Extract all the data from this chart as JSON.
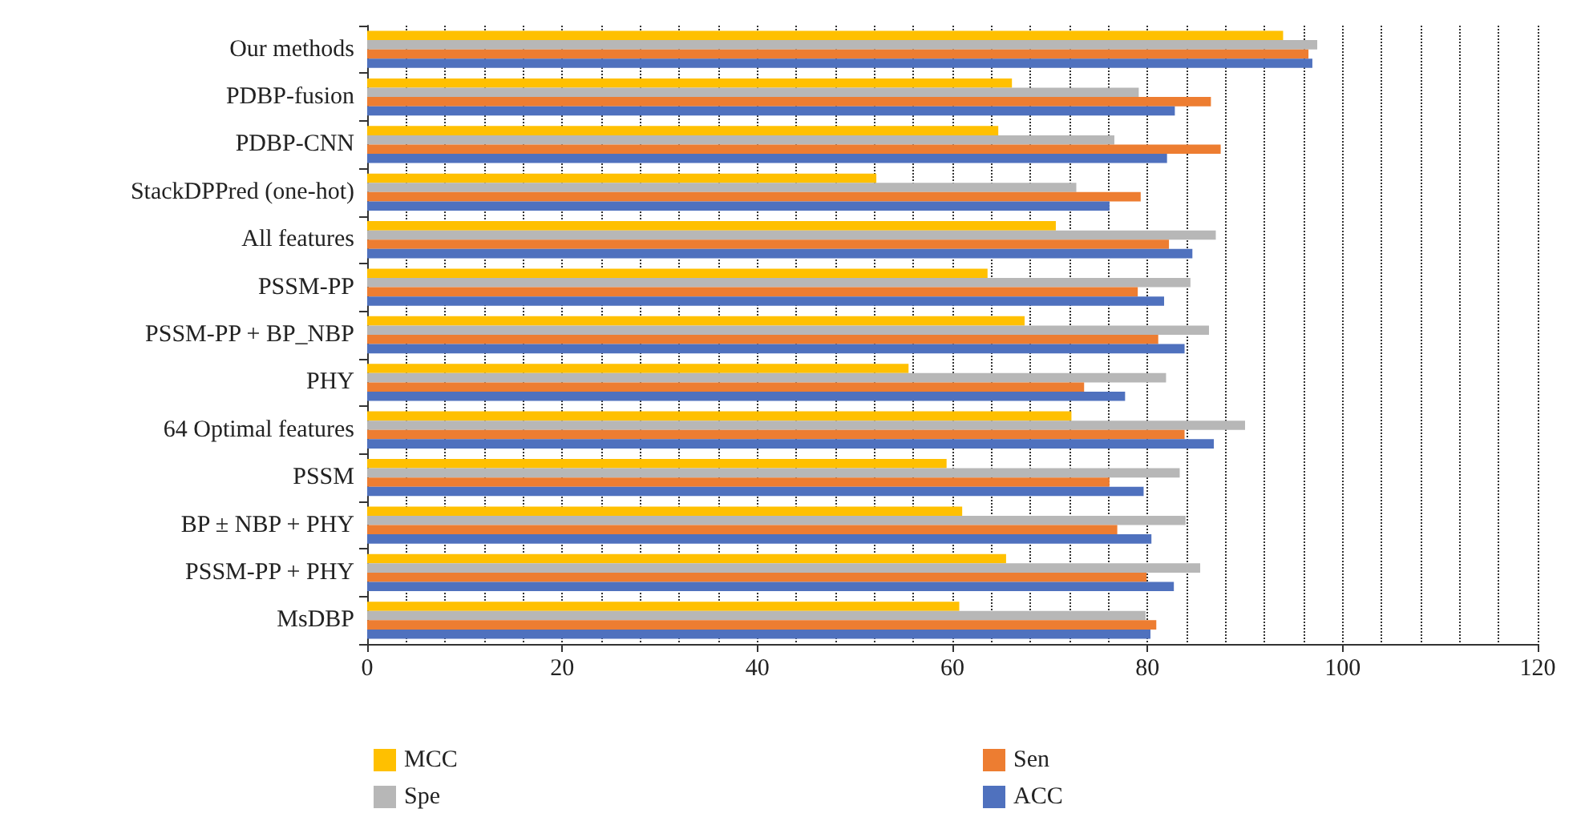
{
  "chart_data": {
    "type": "bar",
    "orientation": "horizontal",
    "categories": [
      "Our methods",
      "PDBP-fusion",
      "PDBP-CNN",
      "StackDPPred (one-hot)",
      "All features",
      "PSSM-PP",
      "PSSM-PP + BP_NBP",
      "PHY",
      "64 Optimal features",
      "PSSM",
      "BP ± NBP + PHY",
      "PSSM-PP + PHY",
      "MsDBP"
    ],
    "series": [
      {
        "name": "MCC",
        "color": "#ffc000",
        "values": [
          93.9,
          66.1,
          64.7,
          52.2,
          70.6,
          63.6,
          67.4,
          55.5,
          72.2,
          59.4,
          61.0,
          65.5,
          60.7
        ]
      },
      {
        "name": "Spe",
        "color": "#b7b7b7",
        "values": [
          97.4,
          79.1,
          76.6,
          72.7,
          87.0,
          84.4,
          86.3,
          81.9,
          90.0,
          83.3,
          83.9,
          85.4,
          79.8
        ]
      },
      {
        "name": "Sen",
        "color": "#ed7d31",
        "values": [
          96.5,
          86.5,
          87.5,
          79.3,
          82.2,
          79.0,
          81.1,
          73.5,
          83.8,
          76.1,
          76.9,
          79.9,
          80.9
        ]
      },
      {
        "name": "ACC",
        "color": "#4f71be",
        "values": [
          96.9,
          82.8,
          82.0,
          76.1,
          84.6,
          81.7,
          83.8,
          77.7,
          86.8,
          79.6,
          80.4,
          82.7,
          80.3
        ]
      }
    ],
    "xlim": [
      0,
      120
    ],
    "xticks": [
      0,
      20,
      40,
      60,
      80,
      100,
      120
    ],
    "grid": "x",
    "legend": "bottom"
  }
}
